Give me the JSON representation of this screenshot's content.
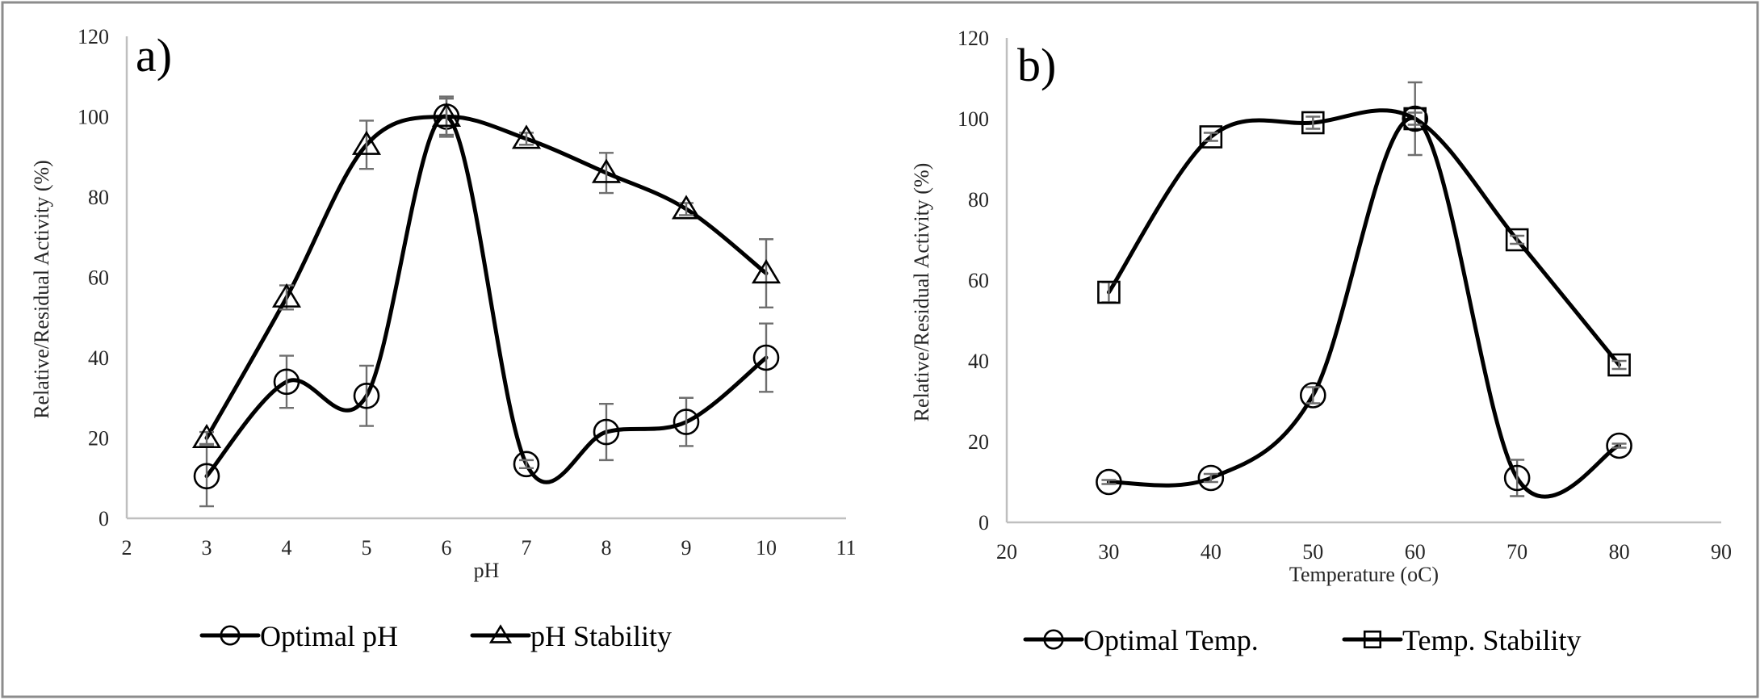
{
  "chart_data": [
    {
      "type": "line",
      "panel_label": "a)",
      "title": "",
      "xlabel": "pH",
      "ylabel": "Relative/Residual Activity (%)",
      "xlim": [
        2,
        11
      ],
      "ylim": [
        0,
        120
      ],
      "xticks": [
        2,
        3,
        4,
        5,
        6,
        7,
        8,
        9,
        10,
        11
      ],
      "yticks": [
        0,
        20,
        40,
        60,
        80,
        100,
        120
      ],
      "grid": false,
      "smooth": true,
      "legend_position": "bottom",
      "series": [
        {
          "name": "Optimal pH",
          "marker": "circle",
          "x": [
            3,
            4,
            5,
            6,
            7,
            8,
            9,
            10
          ],
          "y": [
            10.5,
            34,
            30.5,
            100,
            13.5,
            21.5,
            24,
            40
          ],
          "error": [
            7.5,
            6.5,
            7.5,
            4.5,
            1,
            7,
            6,
            8.5
          ]
        },
        {
          "name": "pH Stability",
          "marker": "triangle",
          "x": [
            3,
            4,
            5,
            6,
            7,
            8,
            9,
            10
          ],
          "y": [
            20,
            55,
            93,
            100,
            94.5,
            86,
            77,
            61
          ],
          "error": [
            1.5,
            3,
            6,
            5,
            1.5,
            5,
            1.5,
            8.5
          ]
        }
      ]
    },
    {
      "type": "line",
      "panel_label": "b)",
      "title": "",
      "xlabel": "Temperature (oC)",
      "ylabel": "Relative/Residual Activity (%)",
      "xlim": [
        20,
        90
      ],
      "ylim": [
        0,
        120
      ],
      "xticks": [
        20,
        30,
        40,
        50,
        60,
        70,
        80,
        90
      ],
      "yticks": [
        0,
        20,
        40,
        60,
        80,
        100,
        120
      ],
      "grid": false,
      "smooth": true,
      "legend_position": "bottom",
      "series": [
        {
          "name": "Optimal Temp.",
          "marker": "circle",
          "x": [
            30,
            40,
            50,
            60,
            70,
            80
          ],
          "y": [
            10,
            11,
            31.5,
            100,
            11,
            19
          ],
          "error": [
            0.5,
            1,
            2,
            9,
            4.5,
            0.5
          ]
        },
        {
          "name": "Temp. Stability",
          "marker": "square",
          "x": [
            30,
            40,
            50,
            60,
            70,
            80
          ],
          "y": [
            57,
            95.5,
            99,
            100,
            70,
            39
          ],
          "error": [
            2.5,
            1,
            1.5,
            1.5,
            1,
            1
          ]
        }
      ]
    }
  ]
}
